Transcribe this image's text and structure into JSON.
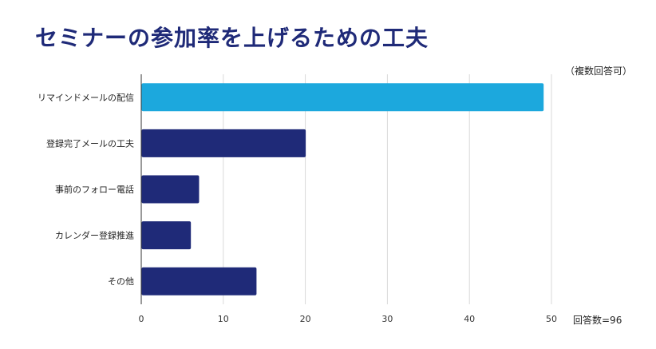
{
  "title": "セミナーの参加率を上げるための工夫",
  "note": "（複数回答可）",
  "respondents": "回答数=96",
  "colors": {
    "highlight": "#1ca8dd",
    "bar": "#1f2a78",
    "grid": "#d9d9d9"
  },
  "chart_data": {
    "type": "bar",
    "orientation": "horizontal",
    "categories": [
      "リマインドメールの配信",
      "登録完了メールの工夫",
      "事前のフォロー電話",
      "カレンダー登録推進",
      "その他"
    ],
    "values": [
      49,
      20,
      7,
      6,
      14
    ],
    "highlight_index": 0,
    "xlim": [
      0,
      50
    ],
    "xticks": [
      0,
      10,
      20,
      30,
      40,
      50
    ],
    "grid": true
  }
}
